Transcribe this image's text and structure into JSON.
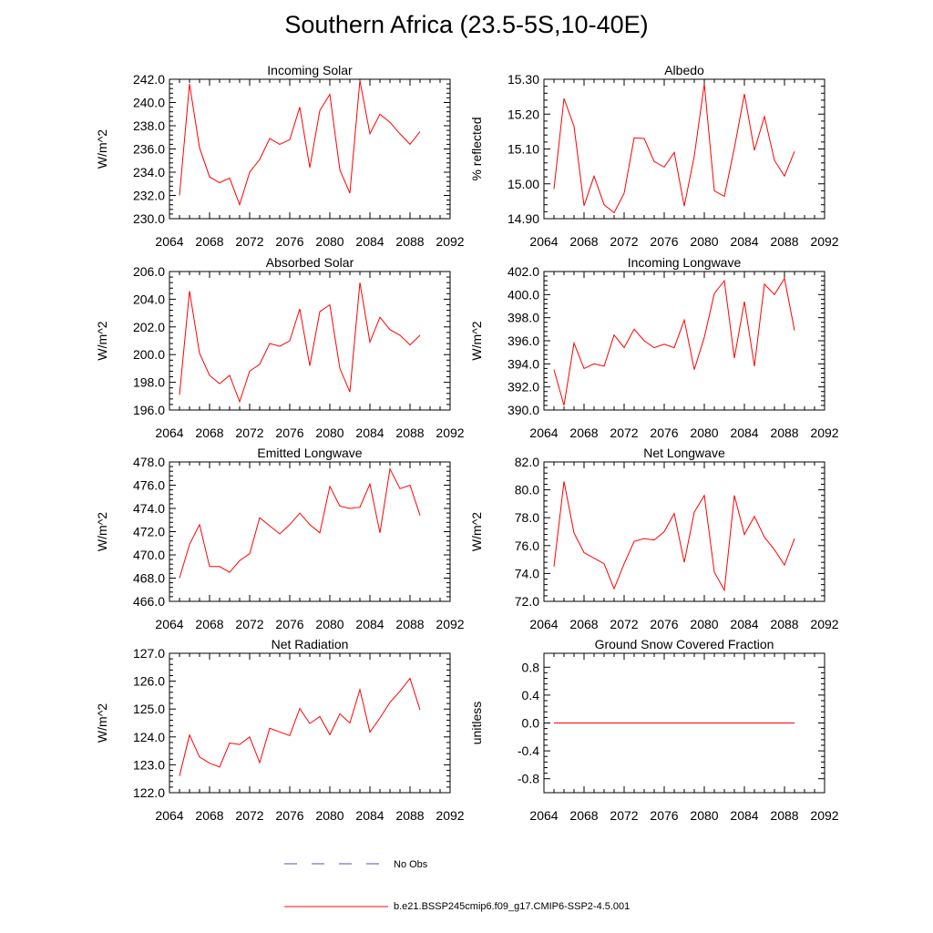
{
  "figure": {
    "title": "Southern Africa (23.5-5S,10-40E)",
    "line_color": "#ff0000",
    "obs_color": "#5555aa"
  },
  "legend": {
    "obs_label": "No Obs",
    "model_label": "b.e21.BSSP245cmip6.f09_g17.CMIP6-SSP2-4.5.001"
  },
  "chart_data": [
    {
      "type": "line",
      "title": "Incoming Solar",
      "ylabel": "W/m^2",
      "xlim": [
        2064,
        2092
      ],
      "ylim": [
        230,
        242
      ],
      "yticks": [
        230,
        232,
        234,
        236,
        238,
        240,
        242
      ],
      "ytick_labels": [
        "230.0",
        "232.0",
        "234.0",
        "236.0",
        "238.0",
        "240.0",
        "242.0"
      ],
      "xticks": [
        2064,
        2068,
        2072,
        2076,
        2080,
        2084,
        2088,
        2092
      ],
      "x": [
        2065,
        2066,
        2067,
        2068,
        2069,
        2070,
        2071,
        2072,
        2073,
        2074,
        2075,
        2076,
        2077,
        2078,
        2079,
        2080,
        2081,
        2082,
        2083,
        2084,
        2085,
        2086,
        2087,
        2088,
        2089
      ],
      "series": [
        {
          "values": [
            232.0,
            241.6,
            236.1,
            233.6,
            233.1,
            233.5,
            231.2,
            234.0,
            235.1,
            236.9,
            236.4,
            236.8,
            239.6,
            234.4,
            239.3,
            240.7,
            234.2,
            232.2,
            241.9,
            237.3,
            239.0,
            238.3,
            237.3,
            236.4,
            237.5
          ]
        }
      ]
    },
    {
      "type": "line",
      "title": "Albedo",
      "ylabel": "% reflected",
      "xlim": [
        2064,
        2092
      ],
      "ylim": [
        14.9,
        15.3
      ],
      "yticks": [
        14.9,
        15.0,
        15.1,
        15.2,
        15.3
      ],
      "ytick_labels": [
        "14.90",
        "15.00",
        "15.10",
        "15.20",
        "15.30"
      ],
      "xticks": [
        2064,
        2068,
        2072,
        2076,
        2080,
        2084,
        2088,
        2092
      ],
      "x": [
        2065,
        2066,
        2067,
        2068,
        2069,
        2070,
        2071,
        2072,
        2073,
        2074,
        2075,
        2076,
        2077,
        2078,
        2079,
        2080,
        2081,
        2082,
        2083,
        2084,
        2085,
        2086,
        2087,
        2088,
        2089
      ],
      "series": [
        {
          "values": [
            14.985,
            15.245,
            15.165,
            14.937,
            15.022,
            14.94,
            14.917,
            14.973,
            15.132,
            15.13,
            15.064,
            15.048,
            15.09,
            14.936,
            15.08,
            15.287,
            14.98,
            14.964,
            15.103,
            15.258,
            15.096,
            15.193,
            15.067,
            15.022,
            15.093
          ]
        }
      ]
    },
    {
      "type": "line",
      "title": "Absorbed Solar",
      "ylabel": "W/m^2",
      "xlim": [
        2064,
        2092
      ],
      "ylim": [
        196,
        206
      ],
      "yticks": [
        196,
        198,
        200,
        202,
        204,
        206
      ],
      "ytick_labels": [
        "196.0",
        "198.0",
        "200.0",
        "202.0",
        "204.0",
        "206.0"
      ],
      "xticks": [
        2064,
        2068,
        2072,
        2076,
        2080,
        2084,
        2088,
        2092
      ],
      "x": [
        2065,
        2066,
        2067,
        2068,
        2069,
        2070,
        2071,
        2072,
        2073,
        2074,
        2075,
        2076,
        2077,
        2078,
        2079,
        2080,
        2081,
        2082,
        2083,
        2084,
        2085,
        2086,
        2087,
        2088,
        2089
      ],
      "series": [
        {
          "values": [
            197.1,
            204.6,
            200.1,
            198.5,
            197.9,
            198.5,
            196.6,
            198.8,
            199.3,
            200.8,
            200.6,
            201.0,
            203.3,
            199.2,
            203.1,
            203.6,
            199.0,
            197.3,
            205.2,
            200.9,
            202.7,
            201.8,
            201.4,
            200.7,
            201.4
          ]
        }
      ]
    },
    {
      "type": "line",
      "title": "Incoming Longwave",
      "ylabel": "W/m^2",
      "xlim": [
        2064,
        2092
      ],
      "ylim": [
        390,
        402
      ],
      "yticks": [
        390,
        392,
        394,
        396,
        398,
        400,
        402
      ],
      "ytick_labels": [
        "390.0",
        "392.0",
        "394.0",
        "396.0",
        "398.0",
        "400.0",
        "402.0"
      ],
      "xticks": [
        2064,
        2068,
        2072,
        2076,
        2080,
        2084,
        2088,
        2092
      ],
      "x": [
        2065,
        2066,
        2067,
        2068,
        2069,
        2070,
        2071,
        2072,
        2073,
        2074,
        2075,
        2076,
        2077,
        2078,
        2079,
        2080,
        2081,
        2082,
        2083,
        2084,
        2085,
        2086,
        2087,
        2088,
        2089
      ],
      "series": [
        {
          "values": [
            393.5,
            390.4,
            395.8,
            393.6,
            394.0,
            393.8,
            396.5,
            395.4,
            397.0,
            396.0,
            395.4,
            395.7,
            395.4,
            397.8,
            393.5,
            396.3,
            400.1,
            401.2,
            394.5,
            399.4,
            393.8,
            400.9,
            400.0,
            401.4,
            396.9
          ]
        }
      ]
    },
    {
      "type": "line",
      "title": "Emitted Longwave",
      "ylabel": "W/m^2",
      "xlim": [
        2064,
        2092
      ],
      "ylim": [
        466,
        478
      ],
      "yticks": [
        466,
        468,
        470,
        472,
        474,
        476,
        478
      ],
      "ytick_labels": [
        "466.0",
        "468.0",
        "470.0",
        "472.0",
        "474.0",
        "476.0",
        "478.0"
      ],
      "xticks": [
        2064,
        2068,
        2072,
        2076,
        2080,
        2084,
        2088,
        2092
      ],
      "x": [
        2065,
        2066,
        2067,
        2068,
        2069,
        2070,
        2071,
        2072,
        2073,
        2074,
        2075,
        2076,
        2077,
        2078,
        2079,
        2080,
        2081,
        2082,
        2083,
        2084,
        2085,
        2086,
        2087,
        2088,
        2089
      ],
      "series": [
        {
          "values": [
            468.0,
            470.9,
            472.6,
            469.0,
            469.0,
            468.5,
            469.5,
            470.1,
            473.2,
            472.5,
            471.8,
            472.6,
            473.6,
            472.6,
            471.9,
            475.9,
            474.2,
            474.0,
            474.1,
            476.1,
            471.9,
            477.4,
            475.7,
            476.0,
            473.4
          ]
        }
      ]
    },
    {
      "type": "line",
      "title": "Net Longwave",
      "ylabel": "W/m^2",
      "xlim": [
        2064,
        2092
      ],
      "ylim": [
        72,
        82
      ],
      "yticks": [
        72,
        74,
        76,
        78,
        80,
        82
      ],
      "ytick_labels": [
        "72.0",
        "74.0",
        "76.0",
        "78.0",
        "80.0",
        "82.0"
      ],
      "xticks": [
        2064,
        2068,
        2072,
        2076,
        2080,
        2084,
        2088,
        2092
      ],
      "x": [
        2065,
        2066,
        2067,
        2068,
        2069,
        2070,
        2071,
        2072,
        2073,
        2074,
        2075,
        2076,
        2077,
        2078,
        2079,
        2080,
        2081,
        2082,
        2083,
        2084,
        2085,
        2086,
        2087,
        2088,
        2089
      ],
      "series": [
        {
          "values": [
            74.5,
            80.6,
            76.9,
            75.5,
            75.1,
            74.7,
            72.9,
            74.7,
            76.3,
            76.5,
            76.4,
            77.0,
            78.3,
            74.8,
            78.4,
            79.6,
            74.1,
            72.8,
            79.6,
            76.8,
            78.1,
            76.6,
            75.7,
            74.6,
            76.5
          ]
        }
      ]
    },
    {
      "type": "line",
      "title": "Net Radiation",
      "ylabel": "W/m^2",
      "xlim": [
        2064,
        2092
      ],
      "ylim": [
        122,
        127
      ],
      "yticks": [
        122,
        123,
        124,
        125,
        126,
        127
      ],
      "ytick_labels": [
        "122.0",
        "123.0",
        "124.0",
        "125.0",
        "126.0",
        "127.0"
      ],
      "xticks": [
        2064,
        2068,
        2072,
        2076,
        2080,
        2084,
        2088,
        2092
      ],
      "x": [
        2065,
        2066,
        2067,
        2068,
        2069,
        2070,
        2071,
        2072,
        2073,
        2074,
        2075,
        2076,
        2077,
        2078,
        2079,
        2080,
        2081,
        2082,
        2083,
        2084,
        2085,
        2086,
        2087,
        2088,
        2089
      ],
      "series": [
        {
          "values": [
            122.6,
            124.07,
            123.28,
            123.06,
            122.92,
            123.78,
            123.73,
            124.0,
            123.08,
            124.31,
            124.18,
            124.05,
            125.02,
            124.48,
            124.73,
            124.08,
            124.83,
            124.5,
            125.7,
            124.17,
            124.68,
            125.24,
            125.64,
            126.1,
            124.97
          ]
        }
      ]
    },
    {
      "type": "line",
      "title": "Ground Snow Covered Fraction",
      "ylabel": "unitless",
      "xlim": [
        2064,
        2092
      ],
      "ylim": [
        -1.0,
        1.0
      ],
      "yticks": [
        -0.8,
        -0.4,
        0.0,
        0.4,
        0.8
      ],
      "ytick_labels": [
        "-0.8",
        "-0.4",
        "0.0",
        "0.4",
        "0.8"
      ],
      "xticks": [
        2064,
        2068,
        2072,
        2076,
        2080,
        2084,
        2088,
        2092
      ],
      "x": [
        2065,
        2066,
        2067,
        2068,
        2069,
        2070,
        2071,
        2072,
        2073,
        2074,
        2075,
        2076,
        2077,
        2078,
        2079,
        2080,
        2081,
        2082,
        2083,
        2084,
        2085,
        2086,
        2087,
        2088,
        2089
      ],
      "series": [
        {
          "values": [
            0,
            0,
            0,
            0,
            0,
            0,
            0,
            0,
            0,
            0,
            0,
            0,
            0,
            0,
            0,
            0,
            0,
            0,
            0,
            0,
            0,
            0,
            0,
            0,
            0
          ]
        }
      ]
    }
  ]
}
